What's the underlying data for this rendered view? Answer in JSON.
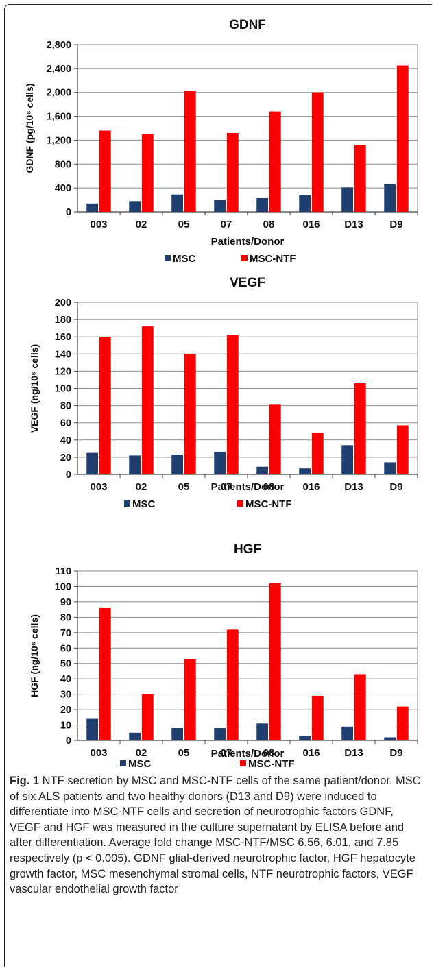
{
  "chart_data": [
    {
      "type": "bar",
      "title": "GDNF",
      "xlabel": "Patients/Donor",
      "ylabel": "GDNF (pg/10⁶ cells)",
      "categories": [
        "003",
        "02",
        "05",
        "07",
        "08",
        "016",
        "D13",
        "D9"
      ],
      "ylim": [
        0,
        2800
      ],
      "yticks": [
        "0",
        "400",
        "800",
        "1,200",
        "1,600",
        "2,000",
        "2,400",
        "2,800"
      ],
      "grid": true,
      "legend": "bottom",
      "series": [
        {
          "name": "MSC",
          "color": "#1f3f6e",
          "values": [
            140,
            180,
            290,
            195,
            230,
            280,
            410,
            460
          ]
        },
        {
          "name": "MSC-NTF",
          "color": "#ff0000",
          "values": [
            1360,
            1300,
            2020,
            1320,
            1680,
            2000,
            1120,
            2450
          ]
        }
      ]
    },
    {
      "type": "bar",
      "title": "VEGF",
      "xlabel": "Patients/Donor",
      "ylabel": "VEGF (ng/10⁶ cells)",
      "categories": [
        "003",
        "02",
        "05",
        "07",
        "08",
        "016",
        "D13",
        "D9"
      ],
      "ylim": [
        0,
        200
      ],
      "yticks": [
        "0",
        "20",
        "40",
        "60",
        "80",
        "100",
        "120",
        "140",
        "160",
        "180",
        "200"
      ],
      "grid": true,
      "legend": "bottom",
      "series": [
        {
          "name": "MSC",
          "color": "#1f3f6e",
          "values": [
            25,
            22,
            23,
            26,
            9,
            7,
            34,
            14
          ]
        },
        {
          "name": "MSC-NTF",
          "color": "#ff0000",
          "values": [
            160,
            172,
            140,
            162,
            81,
            48,
            106,
            57
          ]
        }
      ]
    },
    {
      "type": "bar",
      "title": "HGF",
      "xlabel": "Patients/Donor",
      "ylabel": "HGF (ng/10⁶ cells)",
      "categories": [
        "003",
        "02",
        "05",
        "07",
        "08",
        "016",
        "D13",
        "D9"
      ],
      "ylim": [
        0,
        110
      ],
      "yticks": [
        "0",
        "10",
        "20",
        "30",
        "40",
        "50",
        "60",
        "70",
        "80",
        "90",
        "100",
        "110"
      ],
      "grid": true,
      "legend": "bottom",
      "series": [
        {
          "name": "MSC",
          "color": "#1f3f6e",
          "values": [
            14,
            5,
            8,
            8,
            11,
            3,
            9,
            2
          ]
        },
        {
          "name": "MSC-NTF",
          "color": "#ff0000",
          "values": [
            86,
            30,
            53,
            72,
            102,
            29,
            43,
            22
          ]
        }
      ]
    }
  ],
  "caption": {
    "label": "Fig. 1",
    "text": " NTF secretion by MSC and MSC-NTF cells of the same patient/donor. MSC of six ALS patients and two healthy donors (D13 and D9) were induced to differentiate into MSC-NTF cells and secretion of neurotrophic factors GDNF, VEGF and HGF was measured in the culture supernatant by ELISA before and after differentiation. Average fold change MSC-NTF/MSC 6.56, 6.01, and 7.85 respectively (p < 0.005). GDNF glial-derived neurotrophic factor, HGF hepatocyte growth factor, MSC mesenchymal stromal cells, NTF neurotrophic factors, VEGF vascular endothelial growth factor"
  }
}
